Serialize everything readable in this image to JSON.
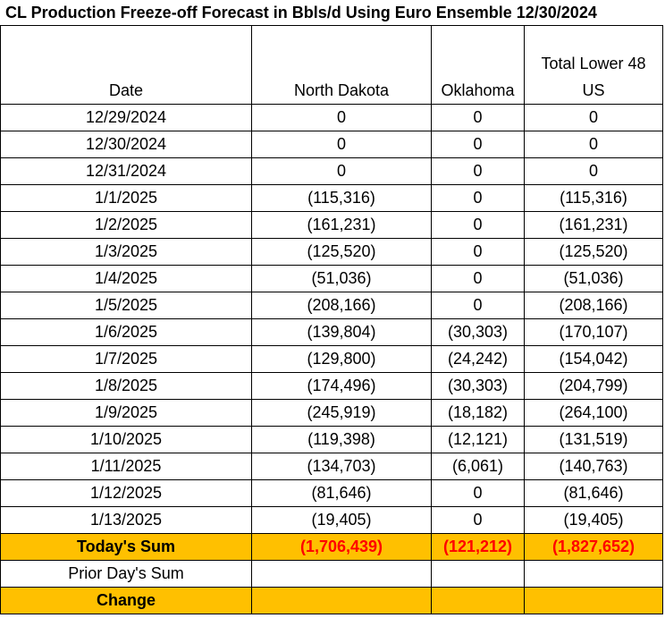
{
  "title": "CL Production Freeze-off Forecast in Bbls/d Using Euro Ensemble 12/30/2024",
  "headers": {
    "date": "Date",
    "north_dakota": "North Dakota",
    "oklahoma": "Oklahoma",
    "total_line1": "Total Lower 48",
    "total_line2": "US"
  },
  "rows": [
    {
      "date": "12/29/2024",
      "nd": "0",
      "ok": "0",
      "total": "0"
    },
    {
      "date": "12/30/2024",
      "nd": "0",
      "ok": "0",
      "total": "0"
    },
    {
      "date": "12/31/2024",
      "nd": "0",
      "ok": "0",
      "total": "0"
    },
    {
      "date": "1/1/2025",
      "nd": "(115,316)",
      "ok": "0",
      "total": "(115,316)"
    },
    {
      "date": "1/2/2025",
      "nd": "(161,231)",
      "ok": "0",
      "total": "(161,231)"
    },
    {
      "date": "1/3/2025",
      "nd": "(125,520)",
      "ok": "0",
      "total": "(125,520)"
    },
    {
      "date": "1/4/2025",
      "nd": "(51,036)",
      "ok": "0",
      "total": "(51,036)"
    },
    {
      "date": "1/5/2025",
      "nd": "(208,166)",
      "ok": "0",
      "total": "(208,166)"
    },
    {
      "date": "1/6/2025",
      "nd": "(139,804)",
      "ok": "(30,303)",
      "total": "(170,107)"
    },
    {
      "date": "1/7/2025",
      "nd": "(129,800)",
      "ok": "(24,242)",
      "total": "(154,042)"
    },
    {
      "date": "1/8/2025",
      "nd": "(174,496)",
      "ok": "(30,303)",
      "total": "(204,799)"
    },
    {
      "date": "1/9/2025",
      "nd": "(245,919)",
      "ok": "(18,182)",
      "total": "(264,100)"
    },
    {
      "date": "1/10/2025",
      "nd": "(119,398)",
      "ok": "(12,121)",
      "total": "(131,519)"
    },
    {
      "date": "1/11/2025",
      "nd": "(134,703)",
      "ok": "(6,061)",
      "total": "(140,763)"
    },
    {
      "date": "1/12/2025",
      "nd": "(81,646)",
      "ok": "0",
      "total": "(81,646)"
    },
    {
      "date": "1/13/2025",
      "nd": "(19,405)",
      "ok": "0",
      "total": "(19,405)"
    }
  ],
  "todays_sum": {
    "label": "Today's Sum",
    "nd": "(1,706,439)",
    "ok": "(121,212)",
    "total": "(1,827,652)"
  },
  "prior_day": {
    "label": "Prior Day's Sum"
  },
  "change": {
    "label": "Change"
  },
  "colors": {
    "negative": "#ff0000",
    "highlight": "#ffc000"
  }
}
